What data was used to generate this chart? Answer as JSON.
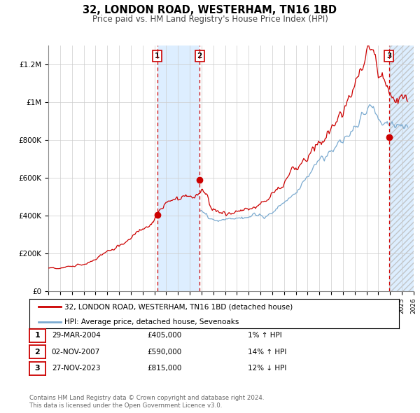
{
  "title": "32, LONDON ROAD, WESTERHAM, TN16 1BD",
  "subtitle": "Price paid vs. HM Land Registry's House Price Index (HPI)",
  "legend_line1": "32, LONDON ROAD, WESTERHAM, TN16 1BD (detached house)",
  "legend_line2": "HPI: Average price, detached house, Sevenoaks",
  "footer1": "Contains HM Land Registry data © Crown copyright and database right 2024.",
  "footer2": "This data is licensed under the Open Government Licence v3.0.",
  "sale_color": "#cc0000",
  "hpi_color": "#7aaad0",
  "shading_color": "#ddeeff",
  "hatch_color": "#cccccc",
  "transactions": [
    {
      "num": 1,
      "date": "29-MAR-2004",
      "price": 405000,
      "hpi_change": "1% ↑ HPI",
      "x": 2004.24
    },
    {
      "num": 2,
      "date": "02-NOV-2007",
      "price": 590000,
      "hpi_change": "14% ↑ HPI",
      "x": 2007.84
    },
    {
      "num": 3,
      "date": "27-NOV-2023",
      "price": 815000,
      "hpi_change": "12% ↓ HPI",
      "x": 2023.91
    }
  ],
  "ylim": [
    0,
    1300000
  ],
  "xlim_start": 1995,
  "xlim_end": 2026,
  "ytick_labels": [
    "£0",
    "£200K",
    "£400K",
    "£600K",
    "£800K",
    "£1M",
    "£1.2M"
  ],
  "ytick_values": [
    0,
    200000,
    400000,
    600000,
    800000,
    1000000,
    1200000
  ]
}
